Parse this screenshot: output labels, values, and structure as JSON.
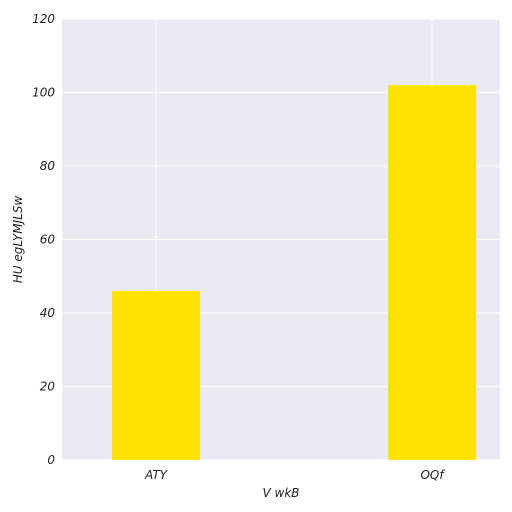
{
  "chart_data": {
    "type": "bar",
    "categories": [
      "ATY",
      "OQf"
    ],
    "values": [
      46,
      102
    ],
    "title": "",
    "xlabel": "V wkB",
    "ylabel": "HU egLYMJLSw",
    "ylim": [
      0,
      120
    ],
    "yticks": [
      0,
      20,
      40,
      60,
      80,
      100,
      120
    ],
    "grid": true,
    "legend": "none"
  },
  "colors": {
    "bar": "#FFE300",
    "plot_background": "#EAEAF2",
    "grid": "#FFFFFF",
    "text": "#222222"
  }
}
